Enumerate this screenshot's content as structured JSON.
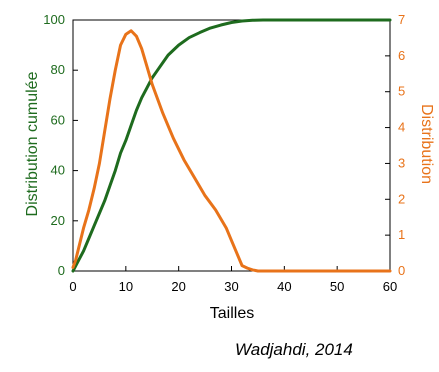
{
  "chart_data": {
    "type": "line",
    "xlabel": "Tailles",
    "ylabel_left": "Distribution cumulée",
    "ylabel_right": "Distribution",
    "xlim": [
      0,
      60
    ],
    "ylim_left": [
      0,
      100
    ],
    "ylim_right": [
      0,
      7
    ],
    "x_ticks": [
      "0",
      "10",
      "20",
      "30",
      "40",
      "50",
      "60"
    ],
    "left_ticks": [
      "0",
      "20",
      "40",
      "60",
      "80",
      "100"
    ],
    "right_ticks": [
      "0",
      "1",
      "2",
      "3",
      "4",
      "5",
      "6",
      "7"
    ],
    "grid": false,
    "colors": {
      "cumulative": "#1e6b1e",
      "distribution": "#e8731a"
    },
    "series": [
      {
        "axis": "left",
        "color": "#1e6b1e",
        "points": [
          [
            0,
            0
          ],
          [
            1,
            4
          ],
          [
            2,
            8
          ],
          [
            3,
            13
          ],
          [
            4,
            18
          ],
          [
            5,
            23
          ],
          [
            6,
            28
          ],
          [
            7,
            34
          ],
          [
            8,
            40
          ],
          [
            9,
            47
          ],
          [
            10,
            52
          ],
          [
            11,
            58
          ],
          [
            12,
            64
          ],
          [
            13,
            69
          ],
          [
            14,
            73
          ],
          [
            15,
            77
          ],
          [
            16,
            80
          ],
          [
            17,
            83
          ],
          [
            18,
            86
          ],
          [
            19,
            88
          ],
          [
            20,
            90
          ],
          [
            22,
            93
          ],
          [
            24,
            95
          ],
          [
            26,
            96.8
          ],
          [
            28,
            98
          ],
          [
            30,
            99
          ],
          [
            32,
            99.6
          ],
          [
            34,
            99.9
          ],
          [
            36,
            100
          ],
          [
            40,
            100
          ],
          [
            50,
            100
          ],
          [
            60,
            100
          ]
        ]
      },
      {
        "axis": "right",
        "color": "#e8731a",
        "points": [
          [
            0,
            0.1
          ],
          [
            0.5,
            0.3
          ],
          [
            1,
            0.6
          ],
          [
            2,
            1.2
          ],
          [
            3,
            1.7
          ],
          [
            4,
            2.3
          ],
          [
            5,
            3.0
          ],
          [
            6,
            3.9
          ],
          [
            7,
            4.8
          ],
          [
            8,
            5.6
          ],
          [
            9,
            6.3
          ],
          [
            10,
            6.6
          ],
          [
            11,
            6.7
          ],
          [
            12,
            6.55
          ],
          [
            13,
            6.2
          ],
          [
            14,
            5.7
          ],
          [
            15,
            5.2
          ],
          [
            17,
            4.4
          ],
          [
            19,
            3.7
          ],
          [
            21,
            3.1
          ],
          [
            23,
            2.6
          ],
          [
            25,
            2.1
          ],
          [
            27,
            1.7
          ],
          [
            29,
            1.2
          ],
          [
            30,
            0.85
          ],
          [
            31,
            0.5
          ],
          [
            32,
            0.15
          ],
          [
            33,
            0.08
          ],
          [
            34,
            0.03
          ],
          [
            35,
            0
          ],
          [
            40,
            0
          ],
          [
            50,
            0
          ],
          [
            60,
            0
          ]
        ]
      }
    ]
  },
  "credit": "Wadjahdi, 2014"
}
